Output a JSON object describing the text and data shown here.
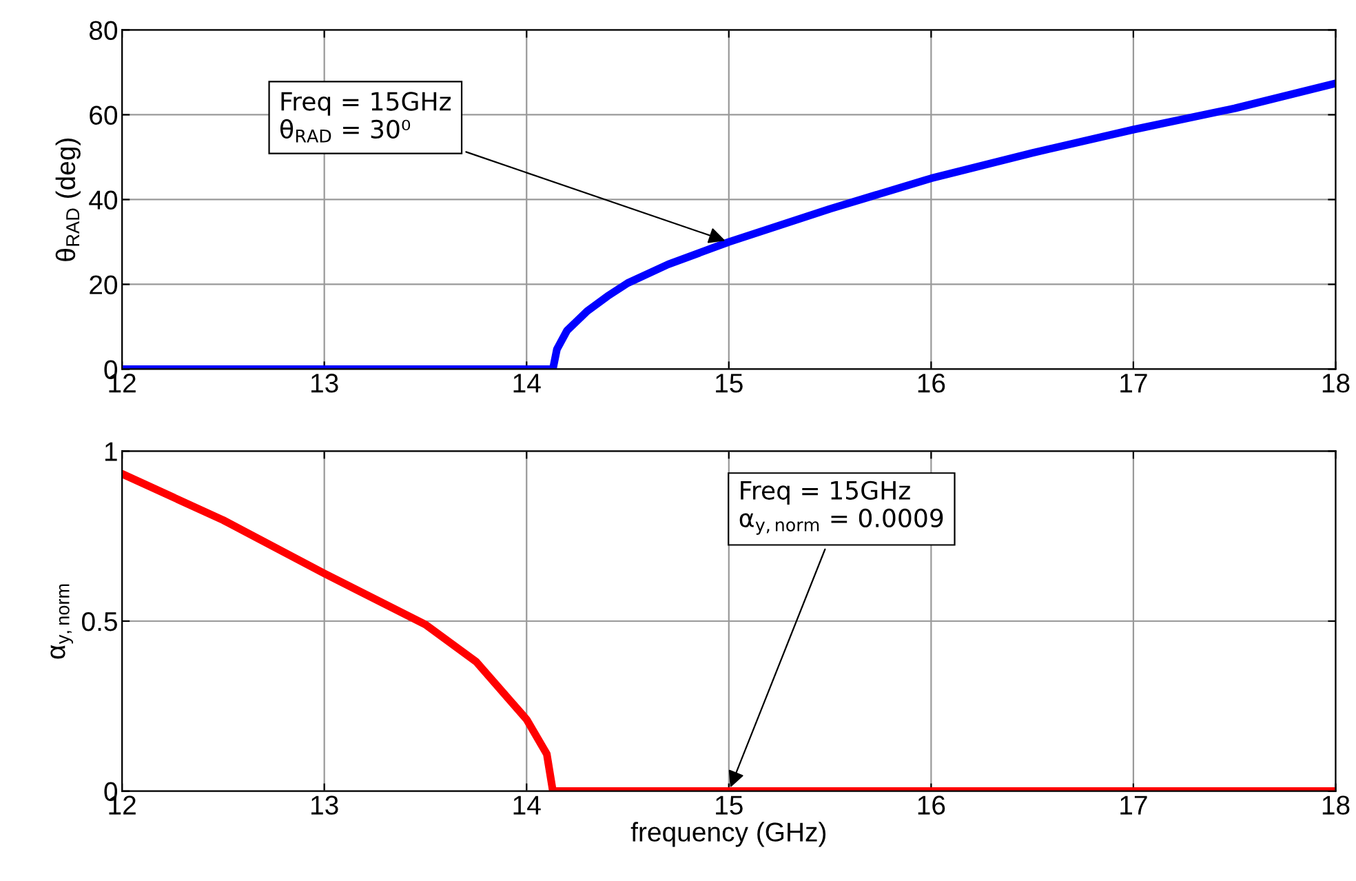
{
  "chart_data": [
    {
      "type": "line",
      "ylabel": "θ$_{RAD}$ (deg)",
      "xlim": [
        12,
        18
      ],
      "xticks": [
        12,
        13,
        14,
        15,
        16,
        17,
        18
      ],
      "ylim": [
        0,
        80
      ],
      "yticks": [
        0,
        20,
        40,
        60,
        80
      ],
      "grid": true,
      "marker": "none",
      "line_style": "solid",
      "series": [
        {
          "color": "#0000ff",
          "x": [
            12,
            13,
            14,
            14.13,
            14.15,
            14.2,
            14.3,
            14.4,
            14.5,
            14.7,
            15,
            15.5,
            16,
            16.5,
            17,
            17.5,
            18
          ],
          "values": [
            0,
            0,
            0,
            0,
            4.7,
            9.1,
            13.7,
            17.2,
            20.3,
            24.7,
            30,
            37.8,
            45,
            51,
            56.5,
            61.5,
            67.4
          ]
        }
      ],
      "annotations": [
        {
          "text": "Freq = 15GHz\nθ$_{RAD}$ = 30⁰",
          "x": 15,
          "y": 30
        }
      ]
    },
    {
      "type": "line",
      "xlabel": "frequency (GHz)",
      "ylabel": "α$_{y,norm}$",
      "xlim": [
        12,
        18
      ],
      "xticks": [
        12,
        13,
        14,
        15,
        16,
        17,
        18
      ],
      "ylim": [
        0,
        1
      ],
      "yticks": [
        0,
        0.5,
        1
      ],
      "grid": true,
      "marker": "none",
      "line_style": "solid",
      "series": [
        {
          "color": "#ff0000",
          "x": [
            12,
            12.5,
            13,
            13.5,
            13.75,
            14,
            14.1,
            14.13,
            15,
            16,
            17,
            18
          ],
          "values": [
            0.933,
            0.797,
            0.64,
            0.49,
            0.381,
            0.211,
            0.109,
            0,
            0,
            0,
            0,
            0
          ]
        }
      ],
      "annotations": [
        {
          "text": "Freq = 15GHz\nα$_{y,norm}$ = 0.0009",
          "x": 15,
          "y": 0
        }
      ]
    }
  ]
}
